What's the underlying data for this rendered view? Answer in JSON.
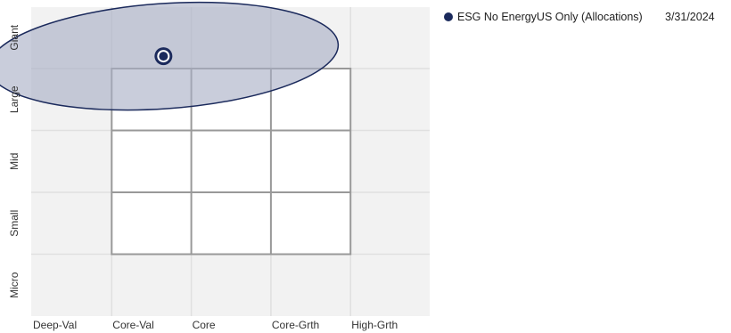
{
  "chart_data": {
    "type": "scatter",
    "x_categories": [
      "Deep-Val",
      "Core-Val",
      "Core",
      "Core-Grth",
      "High-Grth"
    ],
    "y_categories": [
      "Micro",
      "Small",
      "Mid",
      "Large",
      "Giant"
    ],
    "series": [
      {
        "name": "ESG No EnergyUS Only (Allocations)",
        "date": "3/31/2024",
        "centroid": {
          "x": 1.65,
          "y": 4.2
        },
        "ownership_zone": {
          "cx": 1.65,
          "cy": 4.2,
          "rx": 2.2,
          "ry": 0.85
        }
      }
    ],
    "colors": {
      "marker": "#1b2a5c",
      "zone_fill": "#a8aec5",
      "zone_stroke": "#1b2a5c",
      "style_box": "#999999",
      "grid": "#e0e0e0",
      "background": "#f2f2f2"
    },
    "grid": true,
    "legend_position": "top-right"
  }
}
